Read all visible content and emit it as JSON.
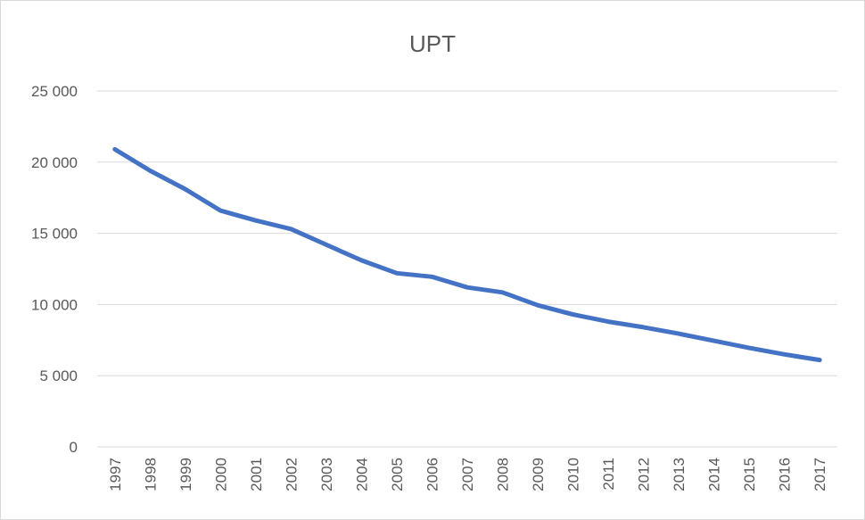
{
  "chart_data": {
    "type": "line",
    "title": "UPT",
    "xlabel": "",
    "ylabel": "",
    "x": [
      "1997",
      "1998",
      "1999",
      "2000",
      "2001",
      "2002",
      "2003",
      "2004",
      "2005",
      "2006",
      "2007",
      "2008",
      "2009",
      "2010",
      "2011",
      "2012",
      "2013",
      "2014",
      "2015",
      "2016",
      "2017"
    ],
    "series": [
      {
        "values": [
          20900,
          19400,
          18100,
          16600,
          15900,
          15300,
          14200,
          13100,
          12200,
          11950,
          11200,
          10850,
          9950,
          9300,
          8800,
          8400,
          7950,
          7450,
          6950,
          6500,
          6100
        ],
        "color": "#4472c4"
      }
    ],
    "ylim": [
      0,
      25000
    ],
    "yticks": [
      0,
      5000,
      10000,
      15000,
      20000,
      25000
    ],
    "ytick_labels": [
      "0",
      "5 000",
      "10 000",
      "15 000",
      "20 000",
      "25 000"
    ],
    "grid": true,
    "legend": "none"
  }
}
